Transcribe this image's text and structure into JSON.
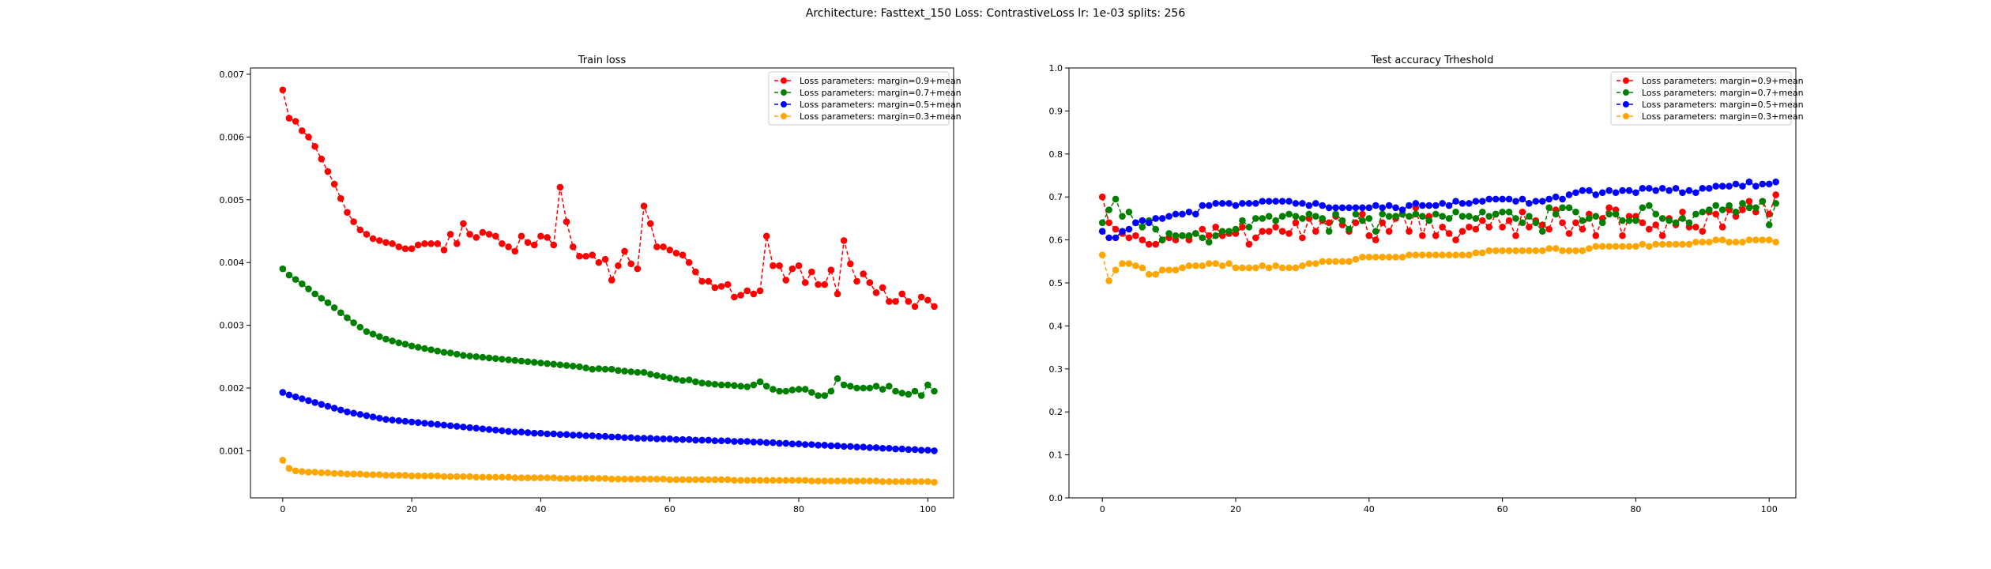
{
  "suptitle": "Architecture: Fasttext_150 Loss: ContrastiveLoss lr: 1e-03 splits: 256",
  "chart_data": [
    {
      "type": "line",
      "title": "Train loss",
      "xlabel": "",
      "ylabel": "",
      "xlim": [
        -5,
        104
      ],
      "ylim": [
        0.00025,
        0.0071
      ],
      "xticks": [
        0,
        20,
        40,
        60,
        80,
        100
      ],
      "yticks": [
        0.001,
        0.002,
        0.003,
        0.004,
        0.005,
        0.006,
        0.007
      ],
      "ytick_labels": [
        "0.001",
        "0.002",
        "0.003",
        "0.004",
        "0.005",
        "0.006",
        "0.007"
      ],
      "legend_position": "top-right",
      "grid": false,
      "series": [
        {
          "name": "Loss parameters: margin=0.9+mean",
          "color": "#ff0000",
          "values": [
            0.00675,
            0.0063,
            0.00625,
            0.0061,
            0.006,
            0.00585,
            0.00565,
            0.00545,
            0.00525,
            0.00502,
            0.0048,
            0.00465,
            0.00452,
            0.00445,
            0.00438,
            0.00435,
            0.00432,
            0.0043,
            0.00425,
            0.00422,
            0.00422,
            0.00428,
            0.0043,
            0.0043,
            0.0043,
            0.0042,
            0.00445,
            0.0043,
            0.00462,
            0.00445,
            0.0044,
            0.00448,
            0.00445,
            0.00442,
            0.0043,
            0.00425,
            0.00418,
            0.00442,
            0.00432,
            0.00428,
            0.00442,
            0.0044,
            0.00428,
            0.0052,
            0.00465,
            0.00425,
            0.0041,
            0.0041,
            0.00412,
            0.004,
            0.00405,
            0.00372,
            0.00395,
            0.00418,
            0.00398,
            0.0039,
            0.0049,
            0.00462,
            0.00425,
            0.00425,
            0.0042,
            0.00415,
            0.00412,
            0.004,
            0.00385,
            0.0037,
            0.0037,
            0.0036,
            0.00362,
            0.00365,
            0.00345,
            0.00348,
            0.00355,
            0.0035,
            0.00355,
            0.00442,
            0.00395,
            0.00395,
            0.00372,
            0.0039,
            0.00395,
            0.00368,
            0.00385,
            0.00365,
            0.00365,
            0.00388,
            0.0035,
            0.00435,
            0.00398,
            0.0037,
            0.00382,
            0.00368,
            0.00352,
            0.0036,
            0.00338,
            0.00338,
            0.0035,
            0.00338,
            0.0033,
            0.00345,
            0.0034,
            0.0033
          ]
        },
        {
          "name": "Loss parameters: margin=0.7+mean",
          "color": "#008000",
          "values": [
            0.0039,
            0.0038,
            0.00373,
            0.00366,
            0.00358,
            0.0035,
            0.00343,
            0.00336,
            0.00328,
            0.0032,
            0.00312,
            0.00304,
            0.00297,
            0.0029,
            0.00286,
            0.00282,
            0.00278,
            0.00275,
            0.00272,
            0.0027,
            0.00267,
            0.00265,
            0.00263,
            0.00261,
            0.00259,
            0.00257,
            0.00256,
            0.00254,
            0.00252,
            0.00251,
            0.0025,
            0.00249,
            0.00248,
            0.00247,
            0.00246,
            0.00245,
            0.00244,
            0.00243,
            0.00242,
            0.00241,
            0.0024,
            0.00239,
            0.00238,
            0.00237,
            0.00236,
            0.00235,
            0.00234,
            0.00232,
            0.0023,
            0.00231,
            0.0023,
            0.0023,
            0.00228,
            0.00227,
            0.00226,
            0.00225,
            0.00225,
            0.00222,
            0.0022,
            0.00218,
            0.00216,
            0.00214,
            0.00212,
            0.00213,
            0.0021,
            0.00208,
            0.00207,
            0.00206,
            0.00205,
            0.00205,
            0.00204,
            0.00203,
            0.00202,
            0.00205,
            0.0021,
            0.00203,
            0.00198,
            0.00195,
            0.00195,
            0.00197,
            0.00198,
            0.00198,
            0.00193,
            0.00188,
            0.00188,
            0.00195,
            0.00215,
            0.00205,
            0.00203,
            0.002,
            0.002,
            0.002,
            0.00203,
            0.00198,
            0.00203,
            0.00195,
            0.00192,
            0.0019,
            0.00195,
            0.00188,
            0.00205,
            0.00195
          ]
        },
        {
          "name": "Loss parameters: margin=0.5+mean",
          "color": "#0000ff",
          "values": [
            0.00193,
            0.00189,
            0.00186,
            0.00183,
            0.0018,
            0.00177,
            0.00174,
            0.00171,
            0.00168,
            0.00165,
            0.00162,
            0.0016,
            0.00158,
            0.00156,
            0.00154,
            0.00152,
            0.0015,
            0.00149,
            0.00148,
            0.00147,
            0.00146,
            0.00145,
            0.00144,
            0.00143,
            0.00142,
            0.00141,
            0.0014,
            0.00139,
            0.00138,
            0.00137,
            0.00136,
            0.00135,
            0.00134,
            0.00133,
            0.00132,
            0.00131,
            0.0013,
            0.0013,
            0.00129,
            0.00128,
            0.00128,
            0.00127,
            0.00127,
            0.00126,
            0.00126,
            0.00125,
            0.00125,
            0.00124,
            0.00124,
            0.00123,
            0.00123,
            0.00122,
            0.00122,
            0.00121,
            0.00121,
            0.0012,
            0.0012,
            0.0012,
            0.00119,
            0.00119,
            0.00119,
            0.00118,
            0.00118,
            0.00118,
            0.00117,
            0.00117,
            0.00117,
            0.00116,
            0.00116,
            0.00116,
            0.00115,
            0.00115,
            0.00115,
            0.00114,
            0.00114,
            0.00113,
            0.00113,
            0.00112,
            0.00112,
            0.00111,
            0.00111,
            0.0011,
            0.0011,
            0.00109,
            0.00109,
            0.00108,
            0.00108,
            0.00107,
            0.00107,
            0.00106,
            0.00106,
            0.00105,
            0.00105,
            0.00104,
            0.00104,
            0.00103,
            0.00103,
            0.00102,
            0.00102,
            0.00101,
            0.00101,
            0.001
          ]
        },
        {
          "name": "Loss parameters: margin=0.3+mean",
          "color": "#ffa500",
          "values": [
            0.00085,
            0.00072,
            0.00068,
            0.00067,
            0.00066,
            0.00066,
            0.00065,
            0.00065,
            0.00064,
            0.00064,
            0.00063,
            0.00063,
            0.00063,
            0.00062,
            0.00062,
            0.00062,
            0.00061,
            0.00061,
            0.00061,
            0.00061,
            0.0006,
            0.0006,
            0.0006,
            0.0006,
            0.0006,
            0.00059,
            0.00059,
            0.00059,
            0.00059,
            0.00059,
            0.00058,
            0.00058,
            0.00058,
            0.00058,
            0.00058,
            0.00058,
            0.00057,
            0.00057,
            0.00057,
            0.00057,
            0.00057,
            0.00057,
            0.00057,
            0.00056,
            0.00056,
            0.00056,
            0.00056,
            0.00056,
            0.00056,
            0.00056,
            0.00056,
            0.00055,
            0.00055,
            0.00055,
            0.00055,
            0.00055,
            0.00055,
            0.00055,
            0.00055,
            0.00055,
            0.00054,
            0.00054,
            0.00054,
            0.00054,
            0.00054,
            0.00054,
            0.00054,
            0.00054,
            0.00054,
            0.00054,
            0.00053,
            0.00053,
            0.00053,
            0.00053,
            0.00053,
            0.00053,
            0.00053,
            0.00053,
            0.00053,
            0.00053,
            0.00053,
            0.00053,
            0.00052,
            0.00052,
            0.00052,
            0.00052,
            0.00052,
            0.00052,
            0.00052,
            0.00052,
            0.00052,
            0.00052,
            0.00052,
            0.00051,
            0.00051,
            0.00051,
            0.00051,
            0.00051,
            0.00051,
            0.00051,
            0.00051,
            0.0005
          ]
        }
      ]
    },
    {
      "type": "line",
      "title": "Test accuracy Trheshold",
      "xlabel": "",
      "ylabel": "",
      "xlim": [
        -5,
        104
      ],
      "ylim": [
        0.0,
        1.0
      ],
      "xticks": [
        0,
        20,
        40,
        60,
        80,
        100
      ],
      "yticks": [
        0.0,
        0.1,
        0.2,
        0.3,
        0.4,
        0.5,
        0.6,
        0.7,
        0.8,
        0.9,
        1.0
      ],
      "ytick_labels": [
        "0.0",
        "0.1",
        "0.2",
        "0.3",
        "0.4",
        "0.5",
        "0.6",
        "0.7",
        "0.8",
        "0.9",
        "1.0"
      ],
      "legend_position": "top-right",
      "grid": false,
      "series": [
        {
          "name": "Loss parameters: margin=0.9+mean",
          "color": "#ff0000",
          "values": [
            0.7,
            0.64,
            0.625,
            0.615,
            0.605,
            0.61,
            0.6,
            0.59,
            0.59,
            0.6,
            0.605,
            0.6,
            0.61,
            0.6,
            0.615,
            0.625,
            0.61,
            0.63,
            0.61,
            0.615,
            0.615,
            0.63,
            0.59,
            0.605,
            0.62,
            0.62,
            0.63,
            0.62,
            0.615,
            0.64,
            0.605,
            0.65,
            0.62,
            0.645,
            0.64,
            0.655,
            0.635,
            0.62,
            0.64,
            0.66,
            0.61,
            0.6,
            0.64,
            0.62,
            0.65,
            0.66,
            0.62,
            0.675,
            0.61,
            0.655,
            0.61,
            0.63,
            0.615,
            0.6,
            0.62,
            0.63,
            0.625,
            0.645,
            0.63,
            0.66,
            0.63,
            0.645,
            0.61,
            0.665,
            0.63,
            0.645,
            0.635,
            0.625,
            0.67,
            0.64,
            0.615,
            0.64,
            0.625,
            0.66,
            0.61,
            0.65,
            0.675,
            0.67,
            0.61,
            0.655,
            0.655,
            0.64,
            0.625,
            0.635,
            0.61,
            0.65,
            0.635,
            0.665,
            0.63,
            0.63,
            0.62,
            0.665,
            0.66,
            0.63,
            0.67,
            0.655,
            0.67,
            0.69,
            0.665,
            0.69,
            0.66,
            0.705
          ]
        },
        {
          "name": "Loss parameters: margin=0.7+mean",
          "color": "#008000",
          "values": [
            0.64,
            0.67,
            0.695,
            0.655,
            0.665,
            0.64,
            0.63,
            0.645,
            0.625,
            0.6,
            0.615,
            0.61,
            0.61,
            0.61,
            0.615,
            0.605,
            0.595,
            0.61,
            0.62,
            0.62,
            0.625,
            0.645,
            0.63,
            0.65,
            0.65,
            0.655,
            0.645,
            0.655,
            0.66,
            0.655,
            0.65,
            0.66,
            0.655,
            0.65,
            0.62,
            0.66,
            0.645,
            0.625,
            0.66,
            0.645,
            0.65,
            0.62,
            0.66,
            0.655,
            0.655,
            0.66,
            0.655,
            0.66,
            0.655,
            0.645,
            0.66,
            0.655,
            0.65,
            0.665,
            0.655,
            0.655,
            0.65,
            0.665,
            0.655,
            0.66,
            0.665,
            0.665,
            0.65,
            0.64,
            0.655,
            0.64,
            0.62,
            0.675,
            0.66,
            0.675,
            0.675,
            0.665,
            0.645,
            0.65,
            0.655,
            0.64,
            0.66,
            0.66,
            0.645,
            0.645,
            0.645,
            0.675,
            0.68,
            0.66,
            0.65,
            0.645,
            0.64,
            0.65,
            0.64,
            0.66,
            0.665,
            0.67,
            0.68,
            0.67,
            0.68,
            0.665,
            0.685,
            0.675,
            0.675,
            0.69,
            0.635,
            0.685
          ]
        },
        {
          "name": "Loss parameters: margin=0.5+mean",
          "color": "#0000ff",
          "values": [
            0.62,
            0.605,
            0.605,
            0.62,
            0.625,
            0.64,
            0.645,
            0.64,
            0.65,
            0.65,
            0.655,
            0.66,
            0.66,
            0.665,
            0.66,
            0.68,
            0.68,
            0.685,
            0.685,
            0.685,
            0.68,
            0.685,
            0.685,
            0.685,
            0.69,
            0.69,
            0.69,
            0.69,
            0.69,
            0.685,
            0.685,
            0.68,
            0.685,
            0.68,
            0.675,
            0.675,
            0.675,
            0.675,
            0.675,
            0.675,
            0.675,
            0.68,
            0.675,
            0.68,
            0.675,
            0.67,
            0.68,
            0.685,
            0.68,
            0.68,
            0.68,
            0.685,
            0.68,
            0.69,
            0.685,
            0.685,
            0.69,
            0.69,
            0.695,
            0.695,
            0.695,
            0.695,
            0.69,
            0.695,
            0.685,
            0.69,
            0.69,
            0.695,
            0.7,
            0.695,
            0.705,
            0.71,
            0.715,
            0.715,
            0.705,
            0.71,
            0.715,
            0.71,
            0.715,
            0.715,
            0.71,
            0.72,
            0.72,
            0.715,
            0.72,
            0.715,
            0.72,
            0.71,
            0.715,
            0.71,
            0.72,
            0.72,
            0.725,
            0.725,
            0.725,
            0.73,
            0.725,
            0.735,
            0.725,
            0.73,
            0.73,
            0.735
          ]
        },
        {
          "name": "Loss parameters: margin=0.3+mean",
          "color": "#ffa500",
          "values": [
            0.565,
            0.505,
            0.53,
            0.545,
            0.545,
            0.54,
            0.535,
            0.52,
            0.52,
            0.53,
            0.53,
            0.53,
            0.535,
            0.54,
            0.54,
            0.54,
            0.545,
            0.545,
            0.54,
            0.545,
            0.535,
            0.535,
            0.535,
            0.535,
            0.54,
            0.535,
            0.54,
            0.535,
            0.535,
            0.535,
            0.54,
            0.545,
            0.545,
            0.55,
            0.55,
            0.55,
            0.55,
            0.55,
            0.555,
            0.56,
            0.56,
            0.56,
            0.56,
            0.56,
            0.56,
            0.56,
            0.565,
            0.565,
            0.565,
            0.565,
            0.565,
            0.565,
            0.565,
            0.565,
            0.565,
            0.565,
            0.57,
            0.57,
            0.575,
            0.575,
            0.575,
            0.575,
            0.575,
            0.575,
            0.575,
            0.575,
            0.575,
            0.58,
            0.58,
            0.575,
            0.575,
            0.575,
            0.575,
            0.58,
            0.585,
            0.585,
            0.585,
            0.585,
            0.585,
            0.585,
            0.585,
            0.59,
            0.585,
            0.59,
            0.59,
            0.59,
            0.59,
            0.59,
            0.59,
            0.595,
            0.595,
            0.595,
            0.6,
            0.6,
            0.595,
            0.595,
            0.595,
            0.6,
            0.6,
            0.6,
            0.6,
            0.595
          ]
        }
      ]
    }
  ]
}
